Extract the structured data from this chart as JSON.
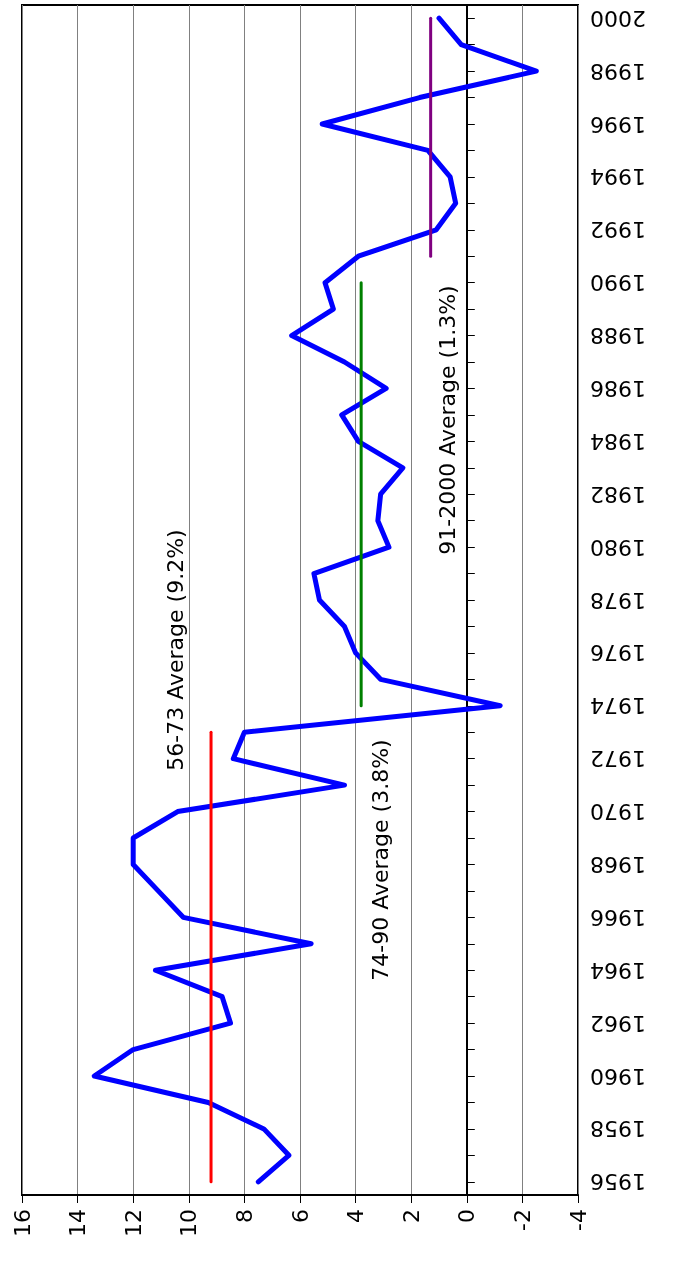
{
  "chart_data": {
    "type": "line",
    "orientation": "horizontal",
    "categories": [
      "2000",
      null,
      "1998",
      null,
      "1996",
      null,
      "1994",
      null,
      "1992",
      null,
      "1990",
      null,
      "1988",
      null,
      "1986",
      null,
      "1984",
      null,
      "1982",
      null,
      "1980",
      null,
      "1978",
      null,
      "1976",
      null,
      "1974",
      null,
      "1972",
      null,
      "1970",
      null,
      "1968",
      null,
      "1966",
      null,
      "1964",
      null,
      "1962",
      null,
      "1960",
      null,
      "1958",
      null,
      "1956"
    ],
    "series": [
      {
        "color": "#0000ff",
        "values": [
          1.0,
          0.2,
          -2.5,
          1.7,
          5.2,
          1.4,
          0.6,
          0.4,
          1.1,
          3.9,
          5.1,
          4.8,
          6.3,
          4.4,
          2.9,
          4.5,
          3.9,
          2.3,
          3.1,
          3.2,
          2.8,
          5.5,
          5.3,
          4.4,
          4.0,
          3.1,
          -1.2,
          8.0,
          8.4,
          4.4,
          10.4,
          12.0,
          12.0,
          11.1,
          10.2,
          5.6,
          11.2,
          8.8,
          8.5,
          12.0,
          13.4,
          9.3,
          7.3,
          6.4,
          7.5
        ]
      },
      {
        "color": "#ff0000",
        "values": [
          null,
          null,
          null,
          null,
          null,
          null,
          null,
          null,
          null,
          null,
          null,
          null,
          null,
          null,
          null,
          null,
          null,
          null,
          null,
          null,
          null,
          null,
          null,
          null,
          null,
          null,
          null,
          9.2,
          9.2,
          9.2,
          9.2,
          9.2,
          9.2,
          9.2,
          9.2,
          9.2,
          9.2,
          9.2,
          9.2,
          9.2,
          9.2,
          9.2,
          9.2,
          9.2,
          9.2
        ]
      },
      {
        "color": "#008000",
        "values": [
          null,
          null,
          null,
          null,
          null,
          null,
          null,
          null,
          null,
          null,
          3.8,
          3.8,
          3.8,
          3.8,
          3.8,
          3.8,
          3.8,
          3.8,
          3.8,
          3.8,
          3.8,
          3.8,
          3.8,
          3.8,
          3.8,
          3.8,
          3.8,
          null,
          null,
          null,
          null,
          null,
          null,
          null,
          null,
          null,
          null,
          null,
          null,
          null,
          null,
          null,
          null,
          null,
          null
        ]
      },
      {
        "color": "#800080",
        "values": [
          1.3,
          1.3,
          1.3,
          1.3,
          1.3,
          1.3,
          1.3,
          1.3,
          1.3,
          1.3,
          null,
          null,
          null,
          null,
          null,
          null,
          null,
          null,
          null,
          null,
          null,
          null,
          null,
          null,
          null,
          null,
          null,
          null,
          null,
          null,
          null,
          null,
          null,
          null,
          null,
          null,
          null,
          null,
          null,
          null,
          null,
          null,
          null,
          null,
          null
        ]
      }
    ],
    "xlim": [
      16,
      -4
    ],
    "xticks": [
      16,
      14,
      12,
      10,
      8,
      6,
      4,
      2,
      0,
      -2,
      -4
    ],
    "grid": "x",
    "marker": "none",
    "annotations": [
      "56-73 Average (9.2%)",
      "74-90 Average (3.8%)",
      "91-2000 Average (1.3%)"
    ]
  }
}
